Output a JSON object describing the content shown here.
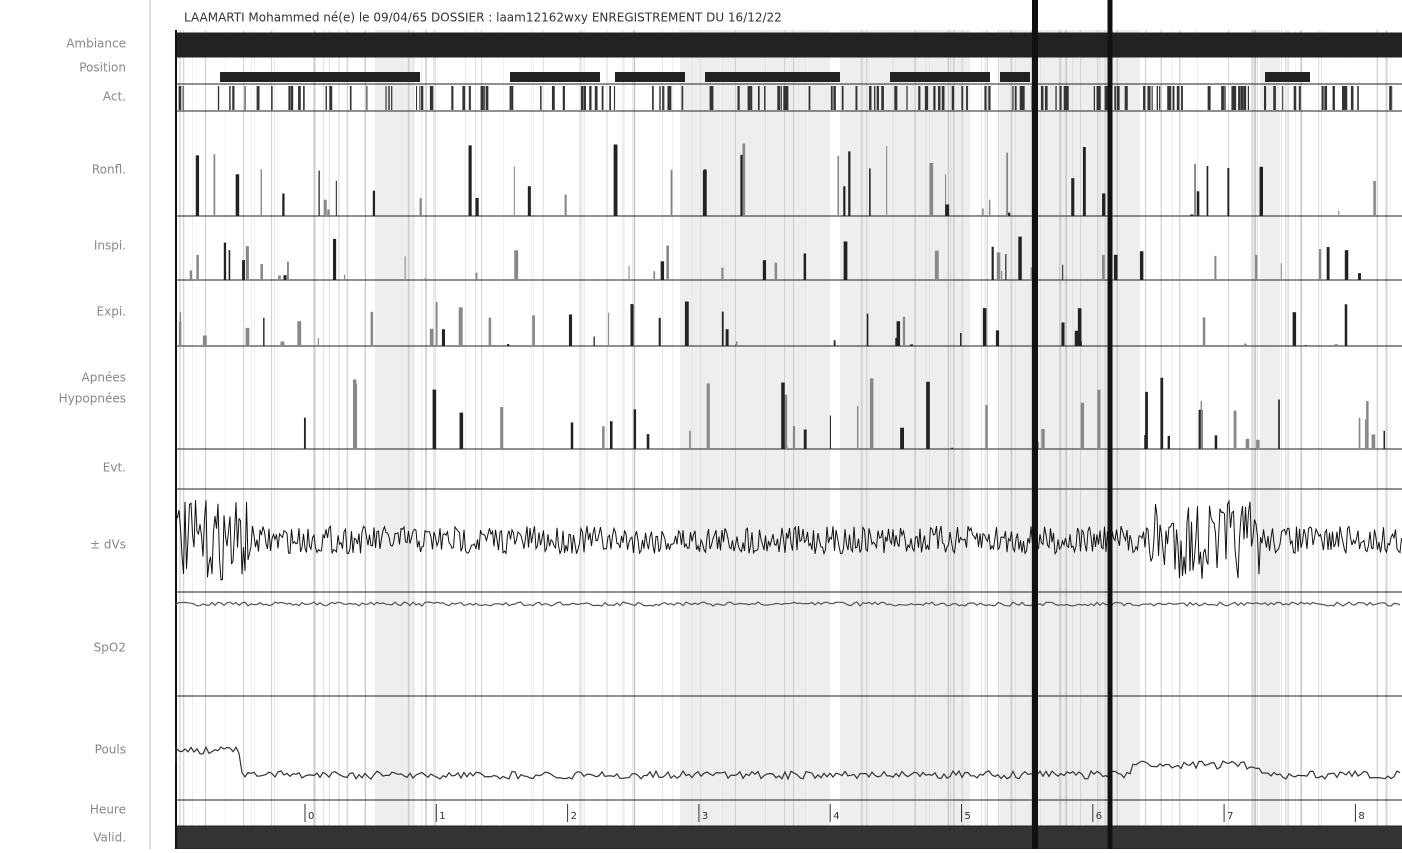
{
  "header": {
    "title": "LAAMARTI  Mohammed    né(e) le 09/04/65  DOSSIER : laam12162wxy  ENREGISTREMENT DU 16/12/22"
  },
  "channels": [
    "Ambiance",
    "Position",
    "Act.",
    "Ronfl.",
    "Inspi.",
    "Expi.",
    "Apnées",
    "Hypopnées",
    "Evt.",
    "± dVs",
    "SpO2",
    "Pouls",
    "Heure",
    "Valid."
  ],
  "hours": [
    "0",
    "1",
    "2",
    "3",
    "4",
    "5",
    "6",
    "7",
    "8"
  ]
}
